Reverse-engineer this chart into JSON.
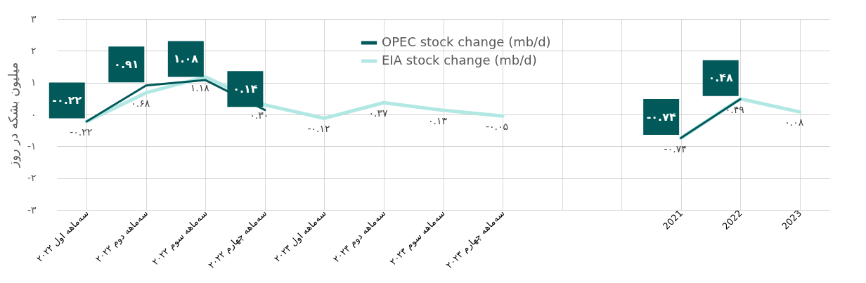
{
  "chart_data": {
    "type": "line",
    "ylabel": "میلیون بشکه در روز",
    "categories": [
      "سه‌ماهه اول ۲۰۲۲",
      "سه‌ماهه دوم ۲۰۲۲",
      "سه‌ماهه سوم ۲۰۲۲",
      "سه‌ماهه چهارم ۲۰۲۲",
      "سه‌ماهه اول ۲۰۲۳",
      "سه‌ماهه دوم ۲۰۲۳",
      "سه‌ماهه سوم ۲۰۲۳",
      "سه‌ماهه چهارم ۲۰۲۳",
      null,
      null,
      "2021",
      "2022",
      "2023"
    ],
    "series": [
      {
        "name": "OPEC stock change (mb/d)",
        "color": "#02595a",
        "values": [
          -0.22,
          0.91,
          1.08,
          0.14,
          null,
          null,
          null,
          null,
          null,
          null,
          -0.74,
          0.48,
          null
        ],
        "value_labels": [
          "-۰.۲۲",
          "۰.۹۱",
          "۱.۰۸",
          "۰.۱۴",
          null,
          null,
          null,
          null,
          null,
          null,
          "-۰.۷۴",
          "۰.۴۸",
          null
        ]
      },
      {
        "name": "EIA stock change (mb/d)",
        "color": "#b2e8e4",
        "values": [
          -0.22,
          0.68,
          1.18,
          0.3,
          -0.12,
          0.37,
          0.13,
          -0.05,
          null,
          null,
          -0.74,
          0.49,
          0.08
        ],
        "value_labels": [
          "-۰.۲۲",
          "۰.۶۸",
          "۱.۱۸",
          "۰.۳۰",
          "-۰.۱۲",
          "۰.۳۷",
          "۰.۱۳",
          "-۰.۰۵",
          null,
          null,
          "-۰.۷۴",
          "۰.۴۹",
          "۰.۰۸"
        ]
      }
    ],
    "ylim": [
      -3,
      3
    ],
    "yticks": [
      {
        "value": 3,
        "label": "۳"
      },
      {
        "value": 2,
        "label": "۲"
      },
      {
        "value": 1,
        "label": "۱"
      },
      {
        "value": 0,
        "label": "۰"
      },
      {
        "value": -1,
        "label": "-۱"
      },
      {
        "value": -2,
        "label": "-۲"
      },
      {
        "value": -3,
        "label": "-۳"
      }
    ],
    "grid": true,
    "legend": "top",
    "marker": "none",
    "line_style": "solid"
  }
}
